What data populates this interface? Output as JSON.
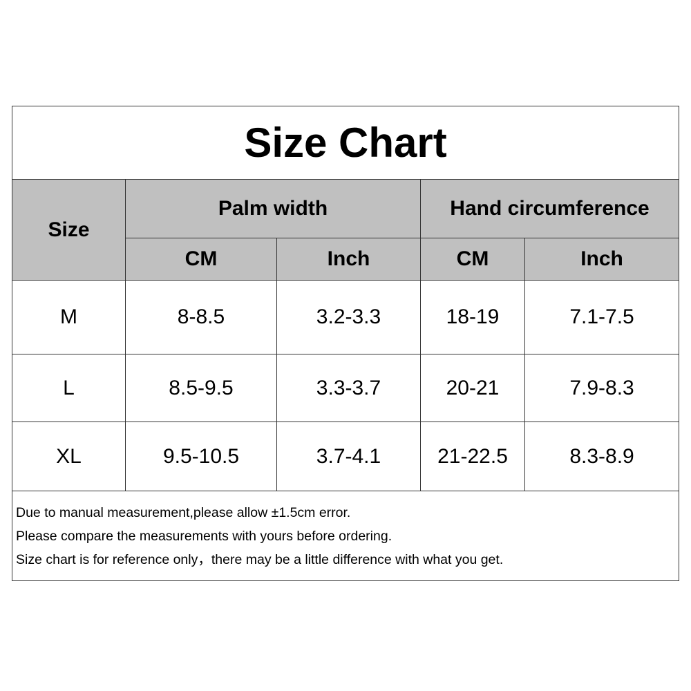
{
  "title": "Size Chart",
  "headers": {
    "size": "Size",
    "palm_width": "Palm width",
    "hand_circumference": "Hand circumference",
    "cm": "CM",
    "inch": "Inch"
  },
  "rows": [
    {
      "size": "M",
      "palm_cm": "8-8.5",
      "palm_inch": "3.2-3.3",
      "hand_cm": "18-19",
      "hand_inch": "7.1-7.5"
    },
    {
      "size": "L",
      "palm_cm": "8.5-9.5",
      "palm_inch": "3.3-3.7",
      "hand_cm": "20-21",
      "hand_inch": "7.9-8.3"
    },
    {
      "size": "XL",
      "palm_cm": "9.5-10.5",
      "palm_inch": "3.7-4.1",
      "hand_cm": "21-22.5",
      "hand_inch": "8.3-8.9"
    }
  ],
  "notes": [
    "Due to manual measurement,please allow ±1.5cm error.",
    "Please compare the measurements with yours before ordering.",
    "Size chart is for reference only，there may be a little difference with what you get."
  ],
  "colors": {
    "header_bg": "#c0c0c0",
    "border": "#333333"
  }
}
